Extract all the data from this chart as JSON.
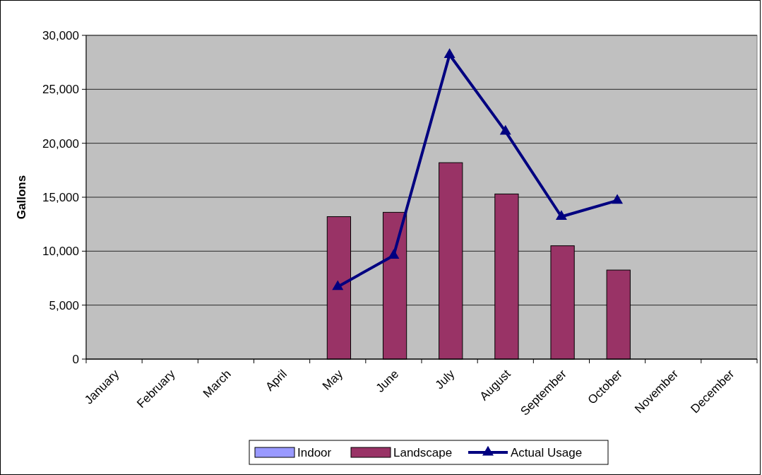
{
  "chart_data": {
    "type": "bar",
    "ylabel": "Gallons",
    "categories": [
      "January",
      "February",
      "March",
      "April",
      "May",
      "June",
      "July",
      "August",
      "September",
      "October",
      "November",
      "December"
    ],
    "series": [
      {
        "name": "Indoor",
        "color": "#9999ff",
        "values": [
          null,
          null,
          null,
          null,
          null,
          null,
          null,
          null,
          null,
          null,
          null,
          null
        ]
      },
      {
        "name": "Landscape",
        "color": "#993366",
        "values": [
          null,
          null,
          null,
          null,
          13200,
          13600,
          18200,
          15300,
          10500,
          8250,
          null,
          null
        ]
      },
      {
        "name": "Actual Usage",
        "type": "line",
        "color": "#000080",
        "marker": "triangle",
        "values": [
          null,
          null,
          null,
          null,
          6700,
          9600,
          28200,
          21100,
          13200,
          14700,
          null,
          null
        ]
      }
    ],
    "ylim": [
      0,
      30000
    ],
    "yticks": [
      {
        "value": 0,
        "label": "0"
      },
      {
        "value": 5000,
        "label": "5,000"
      },
      {
        "value": 10000,
        "label": "10,000"
      },
      {
        "value": 15000,
        "label": "15,000"
      },
      {
        "value": 20000,
        "label": "20,000"
      },
      {
        "value": 25000,
        "label": "25,000"
      },
      {
        "value": 30000,
        "label": "30,000"
      }
    ],
    "grid": "y",
    "legend": "bottom"
  }
}
